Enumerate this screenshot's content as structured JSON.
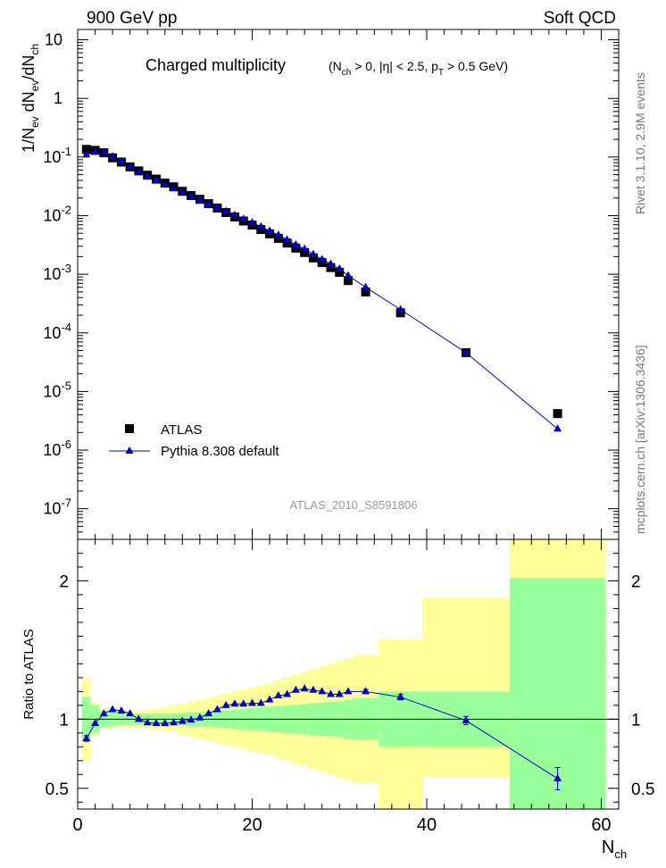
{
  "header": {
    "left": "900 GeV pp",
    "right": "Soft QCD"
  },
  "side_labels": {
    "rivet": "Rivet 3.1.10,  2.9M events",
    "mcplots": "mcplots.cern.ch [arXiv:1306.3436]"
  },
  "chart_data": [
    {
      "panel": "main",
      "type": "scatter",
      "title": "Charged multiplicity",
      "subtitle": "(N_ch > 0, |η| < 2.5, p_T > 0.5 GeV)",
      "watermark": "ATLAS_2010_S8591806",
      "xlabel": "N_ch",
      "ylabel": "1/N_ev dN_ev/dN_ch",
      "xlim": [
        0,
        62
      ],
      "ylim": [
        3e-08,
        15
      ],
      "yscale": "log",
      "y_tick_labels": [
        "10",
        "1",
        "10^-1",
        "10^-2",
        "10^-3",
        "10^-4",
        "10^-5",
        "10^-6",
        "10^-7"
      ],
      "legend": {
        "placement": "bottom-left"
      },
      "series": [
        {
          "name": "ATLAS",
          "color": "#000000",
          "marker": "square",
          "x": [
            1,
            2,
            3,
            4,
            5,
            6,
            7,
            8,
            9,
            10,
            11,
            12,
            13,
            14,
            15,
            16,
            17,
            18,
            19,
            20,
            21,
            22,
            23,
            24,
            25,
            26,
            27,
            28,
            29,
            30,
            31,
            33,
            37,
            44.5,
            55
          ],
          "y": [
            0.135,
            0.13,
            0.118,
            0.097,
            0.082,
            0.068,
            0.058,
            0.049,
            0.042,
            0.036,
            0.031,
            0.026,
            0.022,
            0.019,
            0.016,
            0.0135,
            0.0113,
            0.0095,
            0.0081,
            0.0069,
            0.0058,
            0.0049,
            0.0041,
            0.0034,
            0.0028,
            0.00235,
            0.0019,
            0.00158,
            0.0013,
            0.00108,
            0.00078,
            0.0005,
            0.00022,
            4.6e-05,
            4.2e-06
          ]
        },
        {
          "name": "Pythia 8.308 default",
          "color": "#0000cc",
          "marker": "triangle",
          "x": [
            1,
            2,
            3,
            4,
            5,
            6,
            7,
            8,
            9,
            10,
            11,
            12,
            13,
            14,
            15,
            16,
            17,
            18,
            19,
            20,
            21,
            22,
            23,
            24,
            25,
            26,
            27,
            28,
            29,
            30,
            31,
            33,
            37,
            44.5,
            55
          ],
          "y": [
            0.11,
            0.122,
            0.12,
            0.102,
            0.085,
            0.068,
            0.056,
            0.047,
            0.04,
            0.034,
            0.029,
            0.025,
            0.021,
            0.0185,
            0.016,
            0.0138,
            0.0119,
            0.0102,
            0.0088,
            0.0076,
            0.0065,
            0.0055,
            0.0047,
            0.0039,
            0.0032,
            0.0027,
            0.0022,
            0.0018,
            0.0015,
            0.00124,
            0.00095,
            0.0006,
            0.00025,
            4.6e-05,
            2.3e-06
          ]
        }
      ]
    },
    {
      "panel": "ratio",
      "type": "line",
      "ylabel": "Ratio to ATLAS",
      "xlabel": "N_ch",
      "xlim": [
        0,
        62
      ],
      "ylim": [
        0.35,
        2.3
      ],
      "x_ticks": [
        0,
        20,
        40,
        60
      ],
      "x_tick_labels": [
        "0",
        "20",
        "40",
        "60"
      ],
      "y_tick_labels": [
        "0.5",
        "1",
        "2"
      ],
      "y_ticks": [
        0.5,
        1,
        2
      ],
      "reference_line": 1,
      "band_edges": [
        0.5,
        1.5,
        2.5,
        3.5,
        4.5,
        5.5,
        6.5,
        7.5,
        8.5,
        9.5,
        10.5,
        11.5,
        12.5,
        13.5,
        14.5,
        15.5,
        16.5,
        17.5,
        18.5,
        19.5,
        20.5,
        21.5,
        22.5,
        23.5,
        24.5,
        25.5,
        26.5,
        27.5,
        28.5,
        29.5,
        30.5,
        31.5,
        34.5,
        39.5,
        49.5,
        60.5
      ],
      "green_band": {
        "color": "#99ff99",
        "lo": [
          0.84,
          0.9,
          0.94,
          0.95,
          0.96,
          0.96,
          0.96,
          0.96,
          0.96,
          0.96,
          0.96,
          0.955,
          0.95,
          0.95,
          0.945,
          0.94,
          0.935,
          0.93,
          0.925,
          0.92,
          0.915,
          0.91,
          0.905,
          0.9,
          0.895,
          0.89,
          0.885,
          0.88,
          0.875,
          0.87,
          0.86,
          0.85,
          0.8,
          0.8,
          0.35
        ],
        "hi": [
          1.16,
          1.1,
          1.06,
          1.05,
          1.04,
          1.04,
          1.04,
          1.04,
          1.04,
          1.04,
          1.04,
          1.045,
          1.05,
          1.05,
          1.055,
          1.06,
          1.065,
          1.07,
          1.075,
          1.08,
          1.085,
          1.09,
          1.095,
          1.1,
          1.105,
          1.11,
          1.115,
          1.12,
          1.125,
          1.13,
          1.14,
          1.15,
          1.2,
          1.2,
          2.02
        ]
      },
      "yellow_band": {
        "color": "#ffff99",
        "lo": [
          0.7,
          0.88,
          0.93,
          0.935,
          0.94,
          0.94,
          0.935,
          0.93,
          0.925,
          0.915,
          0.905,
          0.89,
          0.875,
          0.86,
          0.845,
          0.83,
          0.815,
          0.8,
          0.785,
          0.77,
          0.755,
          0.74,
          0.72,
          0.7,
          0.68,
          0.66,
          0.64,
          0.62,
          0.6,
          0.58,
          0.56,
          0.54,
          0.35,
          0.58,
          0.35
        ],
        "hi": [
          1.3,
          1.12,
          1.07,
          1.065,
          1.06,
          1.06,
          1.065,
          1.07,
          1.075,
          1.085,
          1.095,
          1.11,
          1.125,
          1.14,
          1.155,
          1.17,
          1.185,
          1.2,
          1.215,
          1.23,
          1.245,
          1.26,
          1.28,
          1.3,
          1.32,
          1.34,
          1.36,
          1.38,
          1.4,
          1.42,
          1.44,
          1.46,
          1.58,
          1.88,
          2.3
        ]
      },
      "series": [
        {
          "name": "Pythia 8.308 default",
          "color": "#0000cc",
          "x": [
            1,
            2,
            3,
            4,
            5,
            6,
            7,
            8,
            9,
            10,
            11,
            12,
            13,
            14,
            15,
            16,
            17,
            18,
            19,
            20,
            21,
            22,
            23,
            24,
            25,
            26,
            27,
            28,
            29,
            30,
            31,
            33,
            37,
            44.5,
            55
          ],
          "y": [
            0.86,
            0.97,
            1.04,
            1.07,
            1.06,
            1.04,
            1.0,
            0.975,
            0.97,
            0.97,
            0.975,
            0.985,
            0.995,
            1.01,
            1.04,
            1.07,
            1.1,
            1.11,
            1.11,
            1.115,
            1.115,
            1.14,
            1.17,
            1.18,
            1.21,
            1.22,
            1.21,
            1.2,
            1.18,
            1.18,
            1.2,
            1.2,
            1.16,
            0.99,
            0.57
          ],
          "err": [
            0.02,
            0.01,
            0.01,
            0.01,
            0.01,
            0.01,
            0.01,
            0.01,
            0.01,
            0.01,
            0.01,
            0.01,
            0.01,
            0.01,
            0.01,
            0.01,
            0.01,
            0.01,
            0.01,
            0.01,
            0.01,
            0.01,
            0.01,
            0.01,
            0.01,
            0.01,
            0.01,
            0.01,
            0.01,
            0.01,
            0.01,
            0.015,
            0.02,
            0.03,
            0.08
          ]
        }
      ]
    }
  ]
}
